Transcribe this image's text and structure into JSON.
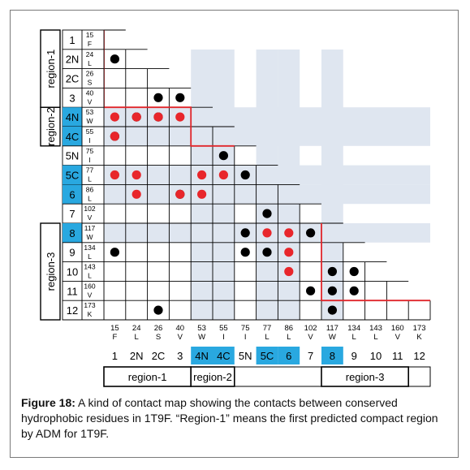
{
  "figure": {
    "caption_label": "Figure 18:",
    "caption_text": " A kind of contact map showing the contacts between conserved hydrophobic residues in 1T9F. “Region-1” means the first predicted compact region by ADM for 1T9F."
  },
  "residues": [
    {
      "id": "1",
      "num": "15",
      "aa": "F",
      "highlight": false
    },
    {
      "id": "2N",
      "num": "24",
      "aa": "L",
      "highlight": false
    },
    {
      "id": "2C",
      "num": "26",
      "aa": "S",
      "highlight": false
    },
    {
      "id": "3",
      "num": "40",
      "aa": "V",
      "highlight": false
    },
    {
      "id": "4N",
      "num": "53",
      "aa": "W",
      "highlight": true
    },
    {
      "id": "4C",
      "num": "55",
      "aa": "I",
      "highlight": true
    },
    {
      "id": "5N",
      "num": "75",
      "aa": "I",
      "highlight": false
    },
    {
      "id": "5C",
      "num": "77",
      "aa": "L",
      "highlight": true
    },
    {
      "id": "6",
      "num": "86",
      "aa": "L",
      "highlight": true
    },
    {
      "id": "7",
      "num": "102",
      "aa": "V",
      "highlight": false
    },
    {
      "id": "8",
      "num": "117",
      "aa": "W",
      "highlight": true
    },
    {
      "id": "9",
      "num": "134",
      "aa": "L",
      "highlight": false
    },
    {
      "id": "10",
      "num": "143",
      "aa": "L",
      "highlight": false
    },
    {
      "id": "11",
      "num": "160",
      "aa": "V",
      "highlight": false
    },
    {
      "id": "12",
      "num": "173",
      "aa": "K",
      "highlight": false
    }
  ],
  "row_regions": [
    {
      "label": "region-1"
    },
    {
      "label": "region-2"
    },
    {
      "label": "region-3"
    }
  ],
  "col_regions": [
    {
      "label": "region-1"
    },
    {
      "label": "region-2"
    },
    {
      "label": "region-3"
    }
  ],
  "colors": {
    "highlight": "#29a8e0",
    "shade": "#dfe6f0",
    "red_dot": "#e8262b",
    "black_dot": "#000000",
    "border_red": "#e0262b"
  },
  "contacts": {
    "black": [
      [
        1,
        0
      ],
      [
        3,
        2
      ],
      [
        3,
        3
      ],
      [
        4,
        1
      ],
      [
        4,
        2
      ],
      [
        5,
        0
      ],
      [
        6,
        5
      ],
      [
        7,
        6
      ],
      [
        8,
        3
      ],
      [
        9,
        7
      ],
      [
        10,
        6
      ],
      [
        10,
        9
      ],
      [
        11,
        0
      ],
      [
        11,
        6
      ],
      [
        11,
        7
      ],
      [
        12,
        10
      ],
      [
        12,
        11
      ],
      [
        13,
        9
      ],
      [
        13,
        10
      ],
      [
        13,
        11
      ],
      [
        14,
        2
      ],
      [
        14,
        10
      ]
    ],
    "red": [
      [
        4,
        0
      ],
      [
        4,
        1
      ],
      [
        4,
        2
      ],
      [
        4,
        3
      ],
      [
        5,
        0
      ],
      [
        7,
        0
      ],
      [
        7,
        1
      ],
      [
        7,
        4
      ],
      [
        7,
        5
      ],
      [
        8,
        1
      ],
      [
        8,
        3
      ],
      [
        8,
        4
      ],
      [
        10,
        7
      ],
      [
        10,
        8
      ],
      [
        11,
        8
      ],
      [
        12,
        8
      ]
    ]
  }
}
